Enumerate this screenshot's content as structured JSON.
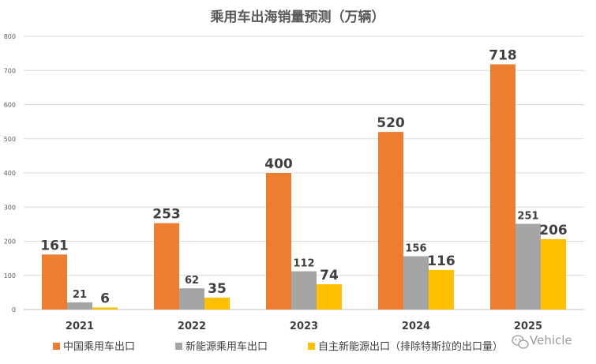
{
  "chart_data": {
    "type": "bar",
    "title": "乘用车出海销量预测（万辆）",
    "categories": [
      "2021",
      "2022",
      "2023",
      "2024",
      "2025"
    ],
    "ylim": [
      0,
      800
    ],
    "yticks": [
      "0",
      "100",
      "200",
      "300",
      "400",
      "500",
      "600",
      "700",
      "800"
    ],
    "grid": true,
    "legend_position": "bottom",
    "series": [
      {
        "name": "中国乘用车出口",
        "color": "#ED7D31",
        "values": [
          161,
          253,
          400,
          520,
          718
        ],
        "labels": [
          "161",
          "253",
          "400",
          "520",
          "718"
        ]
      },
      {
        "name": "新能源乘用车出口",
        "color": "#A5A5A5",
        "values": [
          21,
          62,
          112,
          156,
          251
        ],
        "labels": [
          "21",
          "62",
          "112",
          "156",
          "251"
        ]
      },
      {
        "name": "自主新能源出口（排除特斯拉的出口量）",
        "color": "#FFC000",
        "values": [
          6,
          35,
          74,
          116,
          206
        ],
        "labels": [
          "6",
          "35",
          "74",
          "116",
          "206"
        ]
      }
    ]
  },
  "watermark": "Vehicle"
}
